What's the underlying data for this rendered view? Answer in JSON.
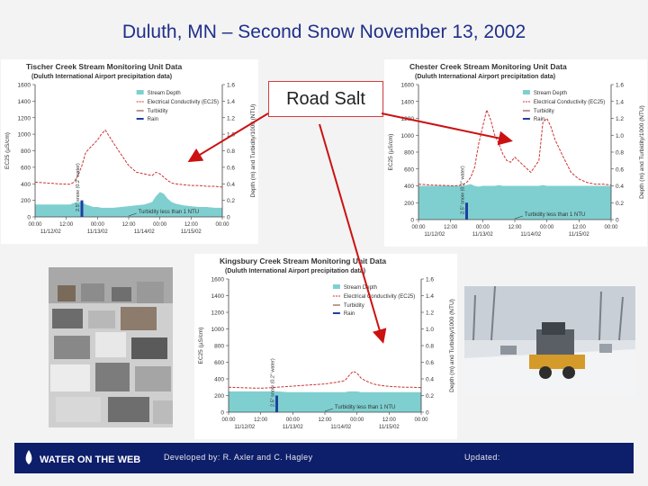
{
  "slide": {
    "title": "Duluth, MN – Second Snow  November 13, 2002",
    "callout": "Road Salt",
    "footer": {
      "logo_text": "WATER ON THE WEB",
      "developed_by": "Developed by: R. Axler and C. Hagley",
      "updated": "Updated:"
    }
  },
  "colors": {
    "title": "#1f2f8a",
    "footer_bg": "#0d1e6b",
    "depth": "#7fcfd0",
    "ec": "#cc3333",
    "rain": "#1f3fa0",
    "arrow": "#cc1111"
  },
  "chart_data": [
    {
      "type": "line",
      "title": "Tischer Creek Stream Monitoring Unit Data",
      "subtitle": "(Duluth International Airport precipitation data)",
      "ylabel": "EC25 (µS/cm)",
      "y2label": "Depth (m) and Turbidity/1000 (NTU)",
      "ylim": [
        0,
        1600
      ],
      "y2lim": [
        0,
        1.6
      ],
      "yticks": [
        "0",
        "200",
        "400",
        "600",
        "800",
        "1000",
        "1200",
        "1400",
        "1600"
      ],
      "y2ticks": [
        "0",
        "0.2",
        "0.4",
        "0.6",
        "0.8",
        "1.0",
        "1.2",
        "1.4",
        "1.6"
      ],
      "xticks": [
        "00:00",
        "12:00",
        "00:00",
        "12:00",
        "00:00",
        "12:00",
        "00:00"
      ],
      "xdates": [
        "11/12/02",
        "11/13/02",
        "11/14/02",
        "11/15/02"
      ],
      "legend": [
        "Stream Depth",
        "Electrical Conductivity (EC25)",
        "Turbidity",
        "Rain"
      ],
      "legend_position": "top-right",
      "annotations": [
        "2.5\" snow (0.2\" water)",
        "Turbidity less than 1 NTU"
      ],
      "x": [
        0,
        6,
        12,
        18,
        20,
        22,
        24,
        26,
        30,
        32,
        34,
        36,
        40,
        44,
        48,
        52,
        56,
        60,
        62,
        64,
        66,
        68,
        70,
        72,
        76,
        80,
        84,
        88,
        92,
        96
      ],
      "series": [
        {
          "name": "Electrical Conductivity (EC25)",
          "values": [
            420,
            410,
            400,
            395,
            420,
            500,
            620,
            780,
            880,
            930,
            1000,
            1050,
            900,
            760,
            620,
            540,
            520,
            500,
            540,
            520,
            480,
            440,
            410,
            400,
            390,
            380,
            380,
            370,
            370,
            360
          ]
        },
        {
          "name": "Stream Depth",
          "values": [
            0.15,
            0.15,
            0.15,
            0.15,
            0.17,
            0.18,
            0.18,
            0.15,
            0.12,
            0.12,
            0.11,
            0.11,
            0.11,
            0.12,
            0.13,
            0.14,
            0.15,
            0.18,
            0.25,
            0.3,
            0.28,
            0.22,
            0.18,
            0.16,
            0.14,
            0.13,
            0.12,
            0.12,
            0.11,
            0.11
          ]
        },
        {
          "name": "Rain",
          "bars": [
            {
              "x": 24,
              "value": 0.2
            }
          ]
        }
      ]
    },
    {
      "type": "line",
      "title": "Chester Creek Stream Monitoring Unit Data",
      "subtitle": "(Duluth International Airport precipitation data)",
      "ylabel": "EC25 (µS/cm)",
      "y2label": "Depth (m) and Turbidity/1000 (NTU)",
      "ylim": [
        0,
        1600
      ],
      "y2lim": [
        0,
        1.6
      ],
      "yticks": [
        "0",
        "200",
        "400",
        "600",
        "800",
        "1000",
        "1200",
        "1400",
        "1600"
      ],
      "y2ticks": [
        "0",
        "0.2",
        "0.4",
        "0.6",
        "0.8",
        "1.0",
        "1.2",
        "1.4",
        "1.6"
      ],
      "xticks": [
        "00:00",
        "12:00",
        "00:00",
        "12:00",
        "00:00",
        "12:00",
        "00:00"
      ],
      "xdates": [
        "11/12/02",
        "11/13/02",
        "11/14/02",
        "11/15/02"
      ],
      "legend": [
        "Stream Depth",
        "Electrical Conductivity (EC25)",
        "Turbidity",
        "Rain"
      ],
      "legend_position": "top-right",
      "annotations": [
        "2.5\" snow (0.2\" water)",
        "Turbidity less than 1 NTU"
      ],
      "x": [
        0,
        6,
        12,
        18,
        22,
        24,
        26,
        28,
        30,
        32,
        34,
        36,
        38,
        40,
        42,
        44,
        46,
        48,
        52,
        56,
        60,
        62,
        64,
        66,
        68,
        72,
        76,
        80,
        84,
        88,
        92,
        96
      ],
      "series": [
        {
          "name": "Electrical Conductivity (EC25)",
          "values": [
            420,
            410,
            405,
            400,
            410,
            440,
            500,
            620,
            900,
            1100,
            1300,
            1180,
            1000,
            900,
            780,
            700,
            680,
            740,
            650,
            560,
            700,
            1150,
            1200,
            1100,
            950,
            750,
            560,
            480,
            440,
            420,
            420,
            410
          ]
        },
        {
          "name": "Stream Depth",
          "values": [
            0.4,
            0.4,
            0.4,
            0.4,
            0.4,
            0.41,
            0.42,
            0.4,
            0.39,
            0.4,
            0.4,
            0.4,
            0.4,
            0.41,
            0.4,
            0.4,
            0.4,
            0.4,
            0.4,
            0.4,
            0.4,
            0.41,
            0.4,
            0.4,
            0.4,
            0.4,
            0.4,
            0.4,
            0.4,
            0.4,
            0.4,
            0.4
          ]
        },
        {
          "name": "Rain",
          "bars": [
            {
              "x": 24,
              "value": 0.2
            }
          ]
        }
      ]
    },
    {
      "type": "line",
      "title": "Kingsbury Creek Stream Monitoring Unit Data",
      "subtitle": "(Duluth International Airport precipitation data)",
      "ylabel": "EC25 (µS/cm)",
      "y2label": "Depth (m) and Turbidity/1000 (NTU)",
      "ylim": [
        0,
        1600
      ],
      "y2lim": [
        0,
        1.6
      ],
      "yticks": [
        "0",
        "200",
        "400",
        "600",
        "800",
        "1000",
        "1200",
        "1400",
        "1600"
      ],
      "y2ticks": [
        "0",
        "0.2",
        "0.4",
        "0.6",
        "0.8",
        "1.0",
        "1.2",
        "1.4",
        "1.6"
      ],
      "xticks": [
        "00:00",
        "12:00",
        "00:00",
        "12:00",
        "00:00",
        "12:00",
        "00:00"
      ],
      "xdates": [
        "11/12/02",
        "11/13/02",
        "11/14/02",
        "11/15/02"
      ],
      "legend": [
        "Stream Depth",
        "Electrical Conductivity (EC25)",
        "Turbidity",
        "Rain"
      ],
      "legend_position": "top-right",
      "annotations": [
        "2.5\" snow (0.2\" water)",
        "Turbidity less than 1 NTU"
      ],
      "x": [
        0,
        6,
        12,
        18,
        24,
        30,
        36,
        42,
        48,
        54,
        58,
        60,
        62,
        64,
        66,
        68,
        70,
        72,
        76,
        80,
        84,
        88,
        92,
        96
      ],
      "series": [
        {
          "name": "Electrical Conductivity (EC25)",
          "values": [
            300,
            295,
            290,
            290,
            300,
            310,
            320,
            330,
            340,
            360,
            380,
            440,
            490,
            470,
            410,
            380,
            360,
            340,
            320,
            310,
            305,
            300,
            300,
            295
          ]
        },
        {
          "name": "Stream Depth",
          "values": [
            0.25,
            0.25,
            0.25,
            0.25,
            0.25,
            0.24,
            0.24,
            0.24,
            0.24,
            0.24,
            0.24,
            0.25,
            0.25,
            0.25,
            0.24,
            0.24,
            0.24,
            0.24,
            0.24,
            0.24,
            0.24,
            0.24,
            0.24,
            0.24
          ]
        },
        {
          "name": "Rain",
          "bars": [
            {
              "x": 24,
              "value": 0.2
            }
          ]
        }
      ]
    }
  ]
}
